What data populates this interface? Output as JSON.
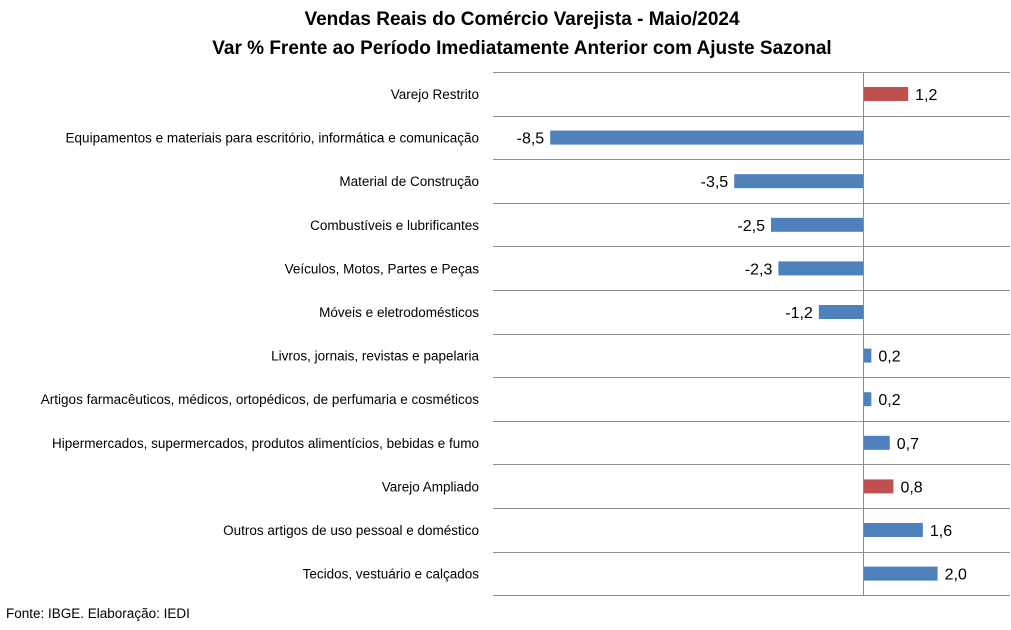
{
  "source": "Fonte: IBGE. Elaboração: IEDI",
  "colors": {
    "highlight": "#c0504d",
    "default": "#4f81bd",
    "grid": "#8c8c8c"
  },
  "chart_data": {
    "type": "bar",
    "orientation": "horizontal",
    "title": "Vendas Reais do Comércio Varejista - Maio/2024",
    "subtitle": "Var % Frente ao Período Imediatamente Anterior com Ajuste Sazonal",
    "xlabel": "",
    "ylabel": "",
    "xlim": [
      -10,
      4
    ],
    "grid": true,
    "legend": "none",
    "categories": [
      "Varejo Restrito",
      "Equipamentos e materiais para escritório, informática e comunicação",
      "Material de Construção",
      "Combustíveis e lubrificantes",
      "Veículos, Motos, Partes e Peças",
      "Móveis e eletrodomésticos",
      "Livros, jornais, revistas e papelaria",
      "Artigos farmacêuticos, médicos, ortopédicos, de perfumaria e cosméticos",
      "Hipermercados, supermercados, produtos alimentícios, bebidas e fumo",
      "Varejo Ampliado",
      "Outros artigos de uso pessoal e doméstico",
      "Tecidos, vestuário e calçados"
    ],
    "values": [
      1.2,
      -8.5,
      -3.5,
      -2.5,
      -2.3,
      -1.2,
      0.2,
      0.2,
      0.7,
      0.8,
      1.6,
      2.0
    ],
    "value_labels": [
      "1,2",
      "-8,5",
      "-3,5",
      "-2,5",
      "-2,3",
      "-1,2",
      "0,2",
      "0,2",
      "0,7",
      "0,8",
      "1,6",
      "2,0"
    ],
    "highlighted": [
      true,
      false,
      false,
      false,
      false,
      false,
      false,
      false,
      false,
      true,
      false,
      false
    ]
  }
}
